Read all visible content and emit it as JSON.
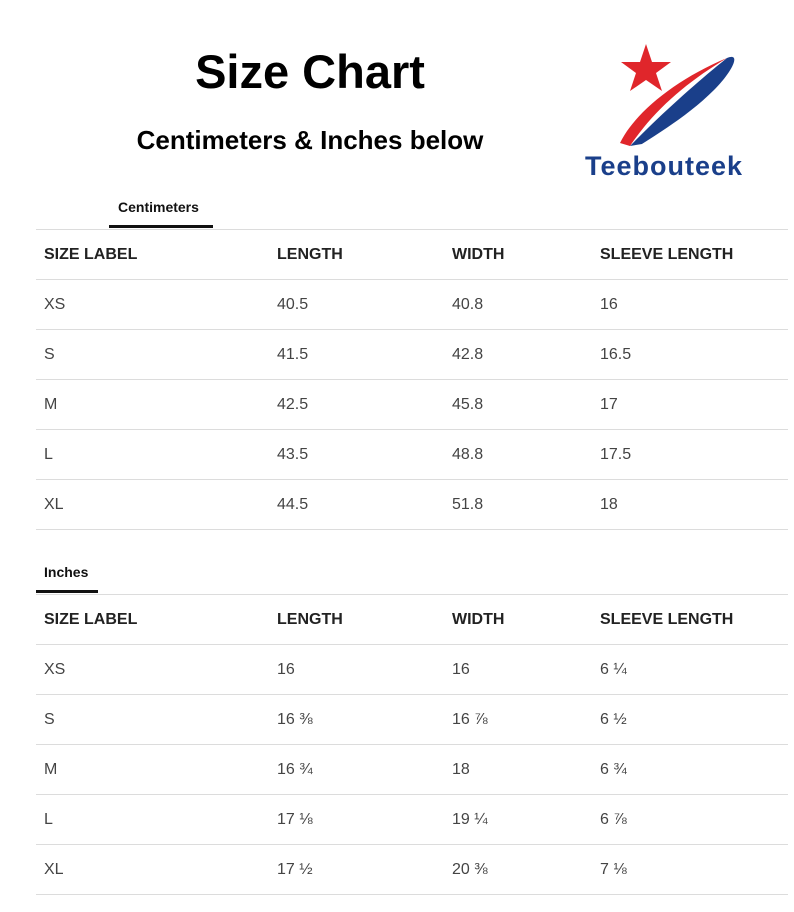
{
  "header": {
    "title": "Size Chart",
    "subtitle": "Centimeters & Inches below"
  },
  "logo": {
    "brand": "Teebouteek",
    "colors": {
      "star": "#e0262b",
      "swoosh_blue": "#1a3f8a",
      "swoosh_red": "#e0262b"
    }
  },
  "tables": {
    "centimeters": {
      "tab_label": "Centimeters",
      "headers": [
        "SIZE LABEL",
        "LENGTH",
        "WIDTH",
        "SLEEVE LENGTH"
      ],
      "rows": [
        [
          "XS",
          "40.5",
          "40.8",
          "16"
        ],
        [
          "S",
          "41.5",
          "42.8",
          "16.5"
        ],
        [
          "M",
          "42.5",
          "45.8",
          "17"
        ],
        [
          "L",
          "43.5",
          "48.8",
          "17.5"
        ],
        [
          "XL",
          "44.5",
          "51.8",
          "18"
        ]
      ]
    },
    "inches": {
      "tab_label": "Inches",
      "headers": [
        "SIZE LABEL",
        "LENGTH",
        "WIDTH",
        "SLEEVE LENGTH"
      ],
      "rows": [
        [
          "XS",
          "16",
          "16",
          "6 ¼"
        ],
        [
          "S",
          "16 ⅜",
          "16 ⅞",
          "6 ½"
        ],
        [
          "M",
          "16 ¾",
          "18",
          "6 ¾"
        ],
        [
          "L",
          "17 ⅛",
          "19 ¼",
          "6 ⅞"
        ],
        [
          "XL",
          "17 ½",
          "20 ⅜",
          "7 ⅛"
        ]
      ]
    }
  }
}
